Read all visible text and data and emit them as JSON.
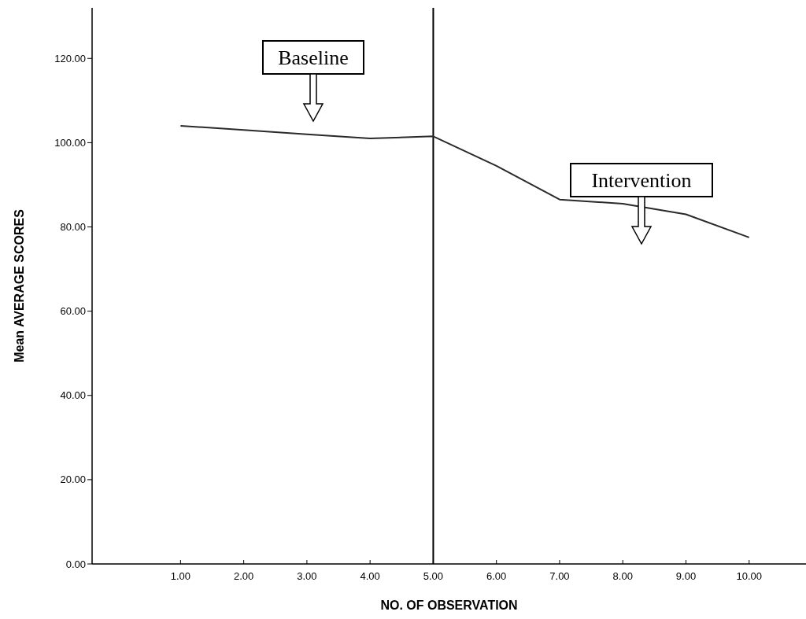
{
  "chart_data": {
    "type": "line",
    "xlabel": "NO. OF OBSERVATION",
    "ylabel": "Mean AVERAGE SCORES",
    "x": [
      1,
      2,
      3,
      4,
      5,
      6,
      7,
      8,
      9,
      10
    ],
    "series": [
      {
        "color": "#2a2a2a",
        "values": [
          104,
          103,
          102,
          101,
          101.5,
          94.5,
          86.5,
          85.5,
          83,
          77.5
        ]
      }
    ],
    "xlim": [
      -0.4,
      10.9
    ],
    "ylim": [
      0,
      132
    ],
    "xticks": [
      {
        "value": 1,
        "label": "1.00"
      },
      {
        "value": 2,
        "label": "2.00"
      },
      {
        "value": 3,
        "label": "3.00"
      },
      {
        "value": 4,
        "label": "4.00"
      },
      {
        "value": 5,
        "label": "5.00"
      },
      {
        "value": 6,
        "label": "6.00"
      },
      {
        "value": 7,
        "label": "7.00"
      },
      {
        "value": 8,
        "label": "8.00"
      },
      {
        "value": 9,
        "label": "9.00"
      },
      {
        "value": 10,
        "label": "10.00"
      }
    ],
    "yticks": [
      {
        "value": 0,
        "label": "0.00"
      },
      {
        "value": 20,
        "label": "20.00"
      },
      {
        "value": 40,
        "label": "40.00"
      },
      {
        "value": 60,
        "label": "60.00"
      },
      {
        "value": 80,
        "label": "80.00"
      },
      {
        "value": 100,
        "label": "100.00"
      },
      {
        "value": 120,
        "label": "120.00"
      }
    ],
    "ref_lines": [
      {
        "axis": "x",
        "value": 5,
        "color": "#000000"
      }
    ],
    "annotations": [
      "Baseline",
      "Intervention"
    ],
    "grid": false,
    "marker": "none",
    "line_style": "solid"
  }
}
